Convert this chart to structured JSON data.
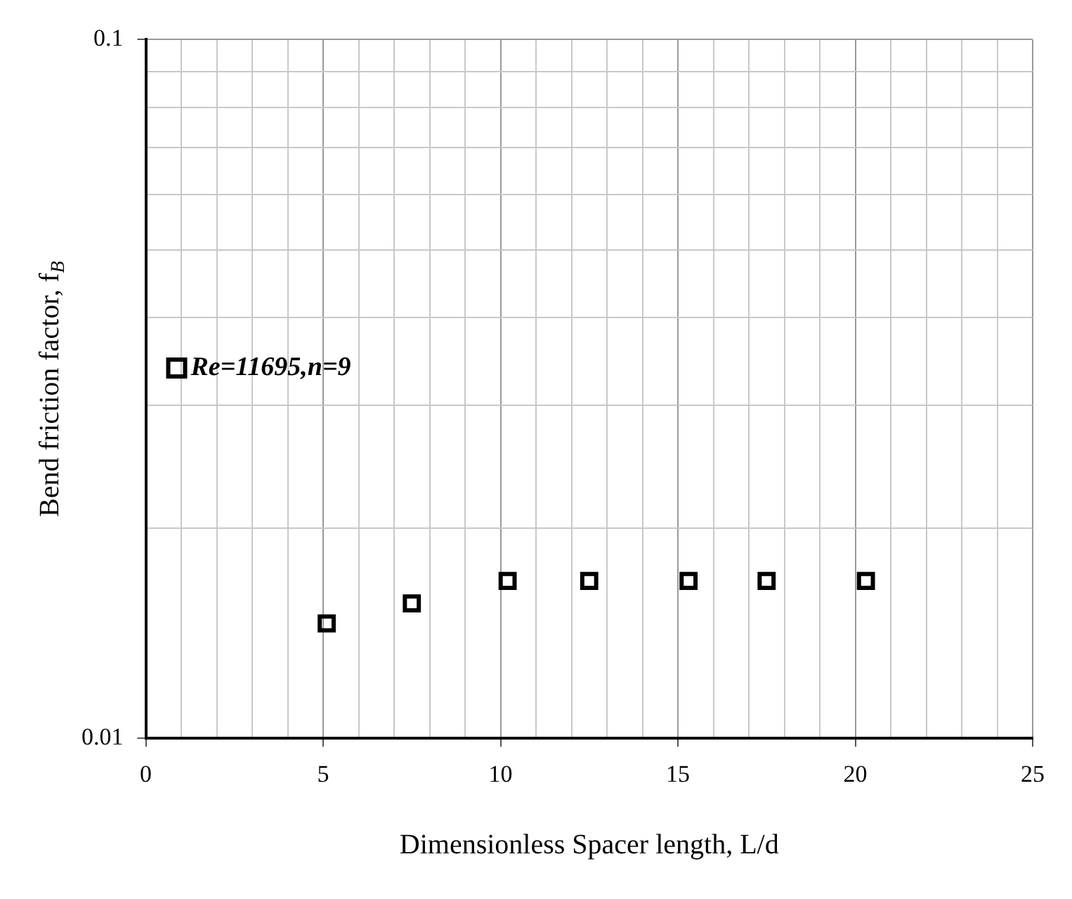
{
  "chart_data": {
    "type": "scatter",
    "xlabel": "Dimensionless Spacer length, L/d",
    "ylabel": "Bend friction factor, f$_{B}$",
    "x": [
      5.1,
      7.5,
      10.2,
      12.5,
      15.3,
      17.5,
      20.3
    ],
    "series": [
      {
        "name": "Re=11695,n=9",
        "color": "#000000",
        "values": [
          0.0146,
          0.0156,
          0.0168,
          0.0168,
          0.0168,
          0.0168,
          0.0168
        ]
      }
    ],
    "xlim": [
      0,
      25
    ],
    "xticks": [
      0,
      {
        "value": 1,
        "label": null
      },
      {
        "value": 2,
        "label": null
      },
      {
        "value": 3,
        "label": null
      },
      {
        "value": 4,
        "label": null
      },
      5,
      {
        "value": 6,
        "label": null
      },
      {
        "value": 7,
        "label": null
      },
      {
        "value": 8,
        "label": null
      },
      {
        "value": 9,
        "label": null
      },
      10,
      {
        "value": 11,
        "label": null
      },
      {
        "value": 12,
        "label": null
      },
      {
        "value": 13,
        "label": null
      },
      {
        "value": 14,
        "label": null
      },
      15,
      {
        "value": 16,
        "label": null
      },
      {
        "value": 17,
        "label": null
      },
      {
        "value": 18,
        "label": null
      },
      {
        "value": 19,
        "label": null
      },
      20,
      {
        "value": 21,
        "label": null
      },
      {
        "value": 22,
        "label": null
      },
      {
        "value": 23,
        "label": null
      },
      {
        "value": 24,
        "label": null
      },
      25
    ],
    "ylim": [
      0.01,
      0.1
    ],
    "yticks": [
      0.01,
      {
        "value": 0.02,
        "label": null
      },
      {
        "value": 0.03,
        "label": null
      },
      {
        "value": 0.04,
        "label": null
      },
      {
        "value": 0.05,
        "label": null
      },
      {
        "value": 0.06,
        "label": null
      },
      {
        "value": 0.07,
        "label": null
      },
      {
        "value": 0.08,
        "label": null
      },
      {
        "value": 0.09,
        "label": null
      },
      0.1
    ],
    "log": "y",
    "grid": true,
    "legend": "left",
    "marker": "square"
  }
}
